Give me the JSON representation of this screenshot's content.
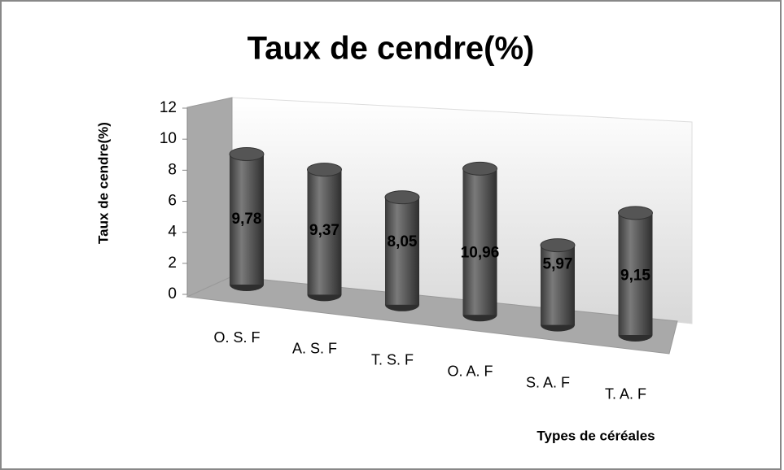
{
  "chart_data": {
    "type": "bar",
    "title": "Taux de cendre(%)",
    "y_label": "Taux de cendre(%)",
    "x_label": "Types de céréales",
    "categories": [
      "O. S. F",
      "A. S. F",
      "T. S. F",
      "O. A. F",
      "S. A. F",
      "T. A. F"
    ],
    "values": [
      9.78,
      9.37,
      8.05,
      10.96,
      5.97,
      9.15
    ],
    "value_labels": [
      "9,78",
      "9,37",
      "8,05",
      "10,96",
      "5,97",
      "9,15"
    ],
    "color": "#555555",
    "ylim": [
      0,
      12
    ],
    "yticks": [
      0,
      2,
      4,
      6,
      8,
      10,
      12
    ]
  }
}
